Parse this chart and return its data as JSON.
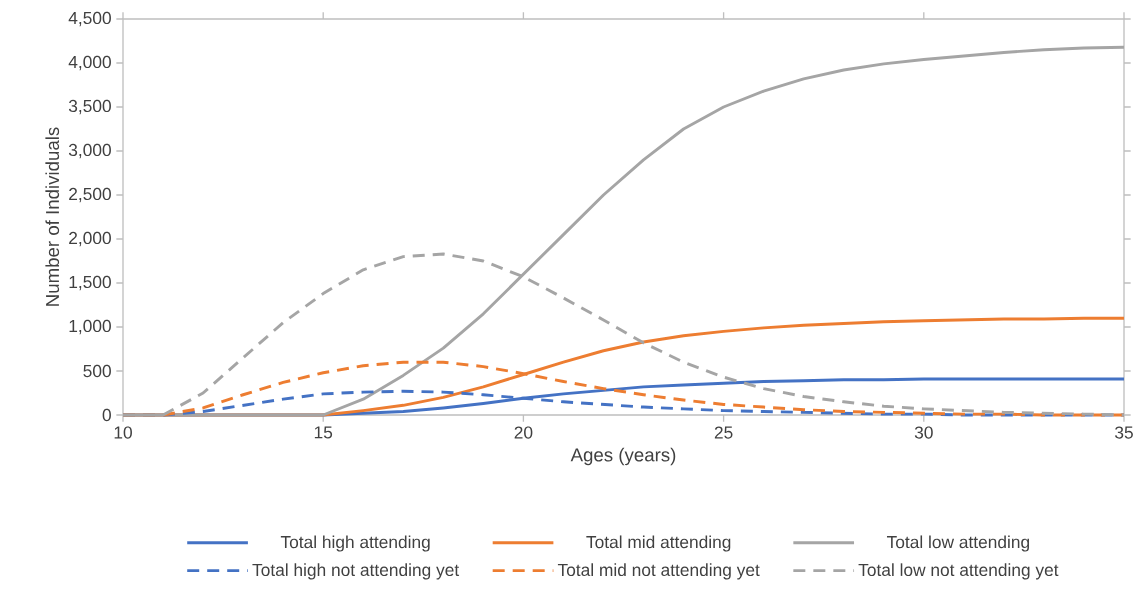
{
  "chart_data": {
    "type": "line",
    "xlabel": "Ages (years)",
    "ylabel": "Number of Individuals",
    "x": [
      10,
      11,
      12,
      13,
      14,
      15,
      16,
      17,
      18,
      19,
      20,
      21,
      22,
      23,
      24,
      25,
      26,
      27,
      28,
      29,
      30,
      31,
      32,
      33,
      34,
      35
    ],
    "xlim": [
      10,
      35
    ],
    "xticks": [
      10,
      15,
      20,
      25,
      30,
      35
    ],
    "ylim": [
      0,
      4500
    ],
    "yticks": [
      {
        "value": 0,
        "label": "0"
      },
      {
        "value": 500,
        "label": "500"
      },
      {
        "value": 1000,
        "label": "1,000"
      },
      {
        "value": 1500,
        "label": "1,500"
      },
      {
        "value": 2000,
        "label": "2,000"
      },
      {
        "value": 2500,
        "label": "2,500"
      },
      {
        "value": 3000,
        "label": "3,000"
      },
      {
        "value": 3500,
        "label": "3,500"
      },
      {
        "value": 4000,
        "label": "4,000"
      },
      {
        "value": 4500,
        "label": "4,500"
      }
    ],
    "legend": "bottom",
    "series": [
      {
        "name": "Total high attending",
        "color": "#4472c4",
        "line_style": "solid",
        "values": [
          0,
          0,
          0,
          0,
          0,
          0,
          20,
          40,
          80,
          130,
          190,
          240,
          280,
          320,
          340,
          360,
          380,
          390,
          400,
          400,
          410,
          410,
          410,
          410,
          410,
          410
        ]
      },
      {
        "name": "Total mid attending",
        "color": "#ed7d31",
        "line_style": "solid",
        "values": [
          0,
          0,
          0,
          0,
          0,
          0,
          50,
          110,
          200,
          320,
          460,
          600,
          730,
          830,
          900,
          950,
          990,
          1020,
          1040,
          1060,
          1070,
          1080,
          1090,
          1090,
          1100,
          1100
        ]
      },
      {
        "name": "Total low attending",
        "color": "#a5a5a5",
        "line_style": "solid",
        "values": [
          0,
          0,
          0,
          0,
          0,
          0,
          180,
          450,
          760,
          1150,
          1600,
          2050,
          2500,
          2900,
          3250,
          3500,
          3680,
          3820,
          3920,
          3990,
          4040,
          4080,
          4120,
          4150,
          4170,
          4180
        ]
      },
      {
        "name": "Total high not attending yet",
        "color": "#4472c4",
        "line_style": "dashed",
        "values": [
          0,
          0,
          40,
          110,
          180,
          240,
          260,
          270,
          260,
          230,
          190,
          150,
          120,
          90,
          70,
          50,
          40,
          30,
          20,
          10,
          10,
          0,
          0,
          0,
          0,
          0
        ]
      },
      {
        "name": "Total mid not attending yet",
        "color": "#ed7d31",
        "line_style": "dashed",
        "values": [
          0,
          0,
          80,
          230,
          370,
          480,
          560,
          600,
          600,
          550,
          470,
          380,
          300,
          230,
          170,
          120,
          90,
          60,
          40,
          30,
          20,
          10,
          10,
          0,
          0,
          0
        ]
      },
      {
        "name": "Total low not attending yet",
        "color": "#a5a5a5",
        "line_style": "dashed",
        "values": [
          0,
          0,
          250,
          650,
          1050,
          1380,
          1650,
          1800,
          1830,
          1750,
          1570,
          1330,
          1080,
          820,
          600,
          430,
          300,
          210,
          150,
          100,
          70,
          50,
          30,
          20,
          10,
          0
        ]
      }
    ]
  }
}
